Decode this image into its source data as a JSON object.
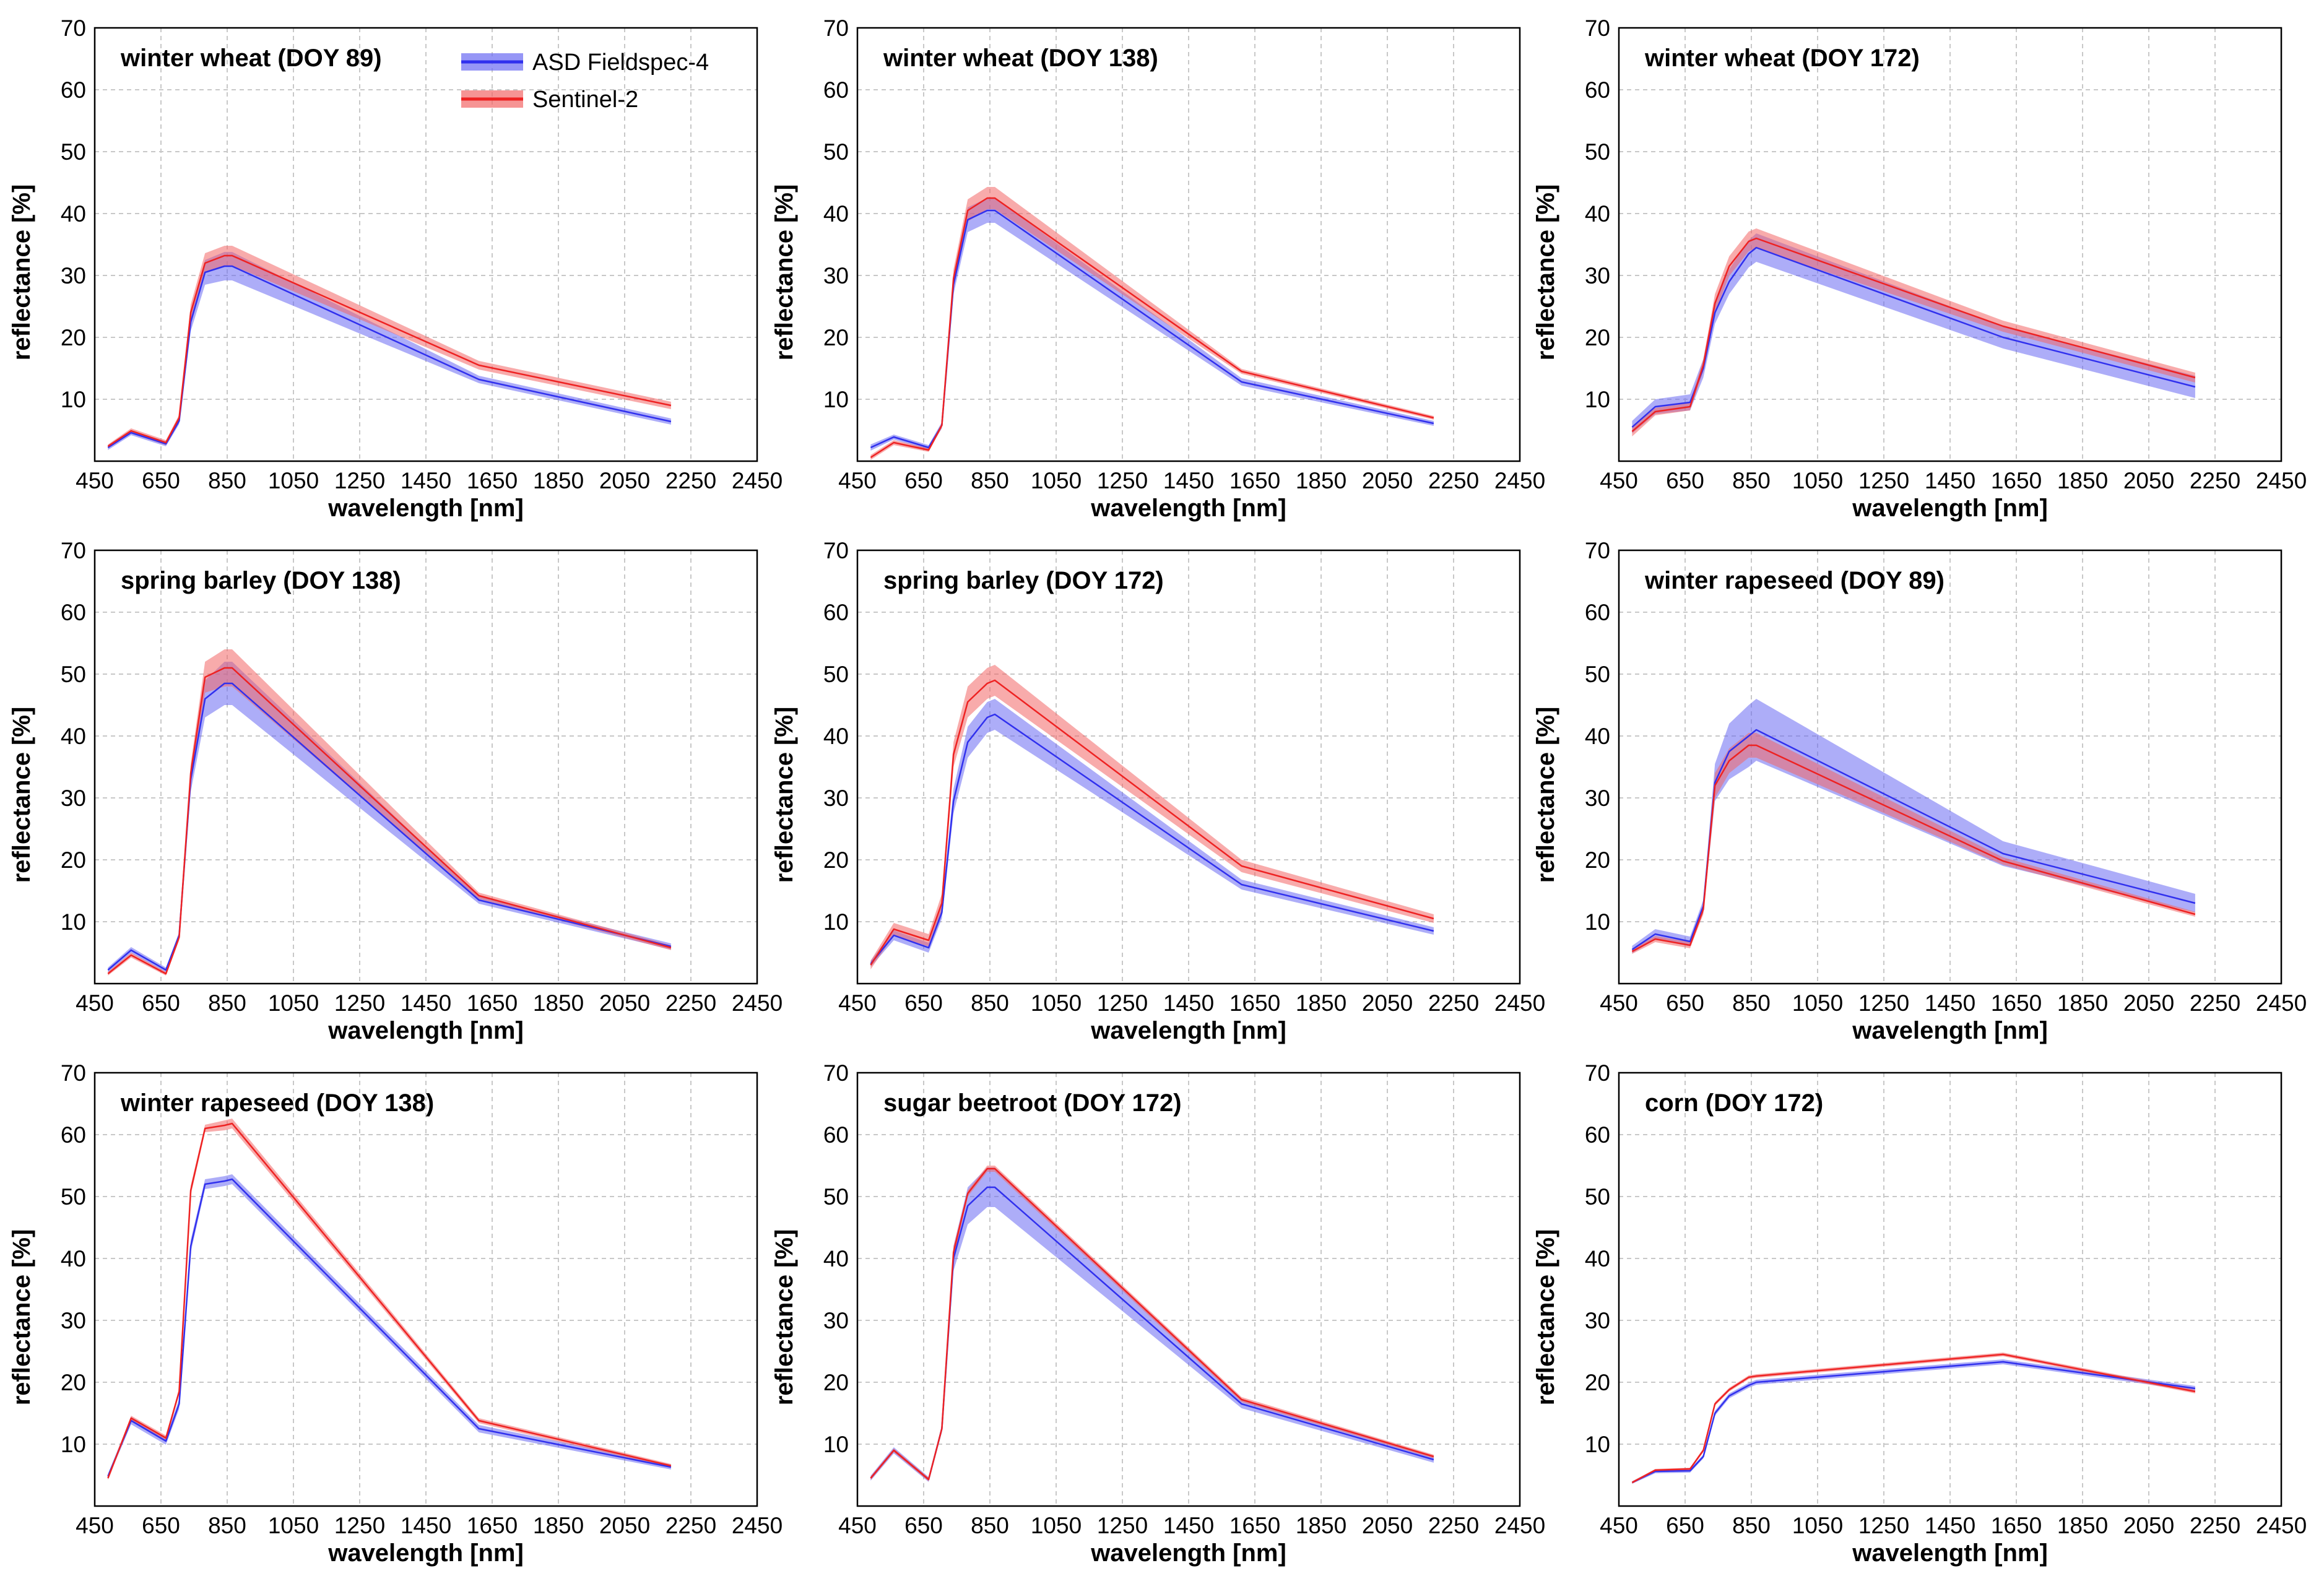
{
  "legend": [
    {
      "name": "ASD Fieldspec-4",
      "color": "#3030ee",
      "band": "#6a6af2"
    },
    {
      "name": "Sentinel-2",
      "color": "#ee2222",
      "band": "#f26666"
    }
  ],
  "axis": {
    "xlabel": "wavelength [nm]",
    "ylabel": "reflectance [%]",
    "xlim": [
      450,
      2450
    ],
    "ylim": [
      0,
      70
    ],
    "xticks": [
      450,
      650,
      850,
      1050,
      1250,
      1450,
      1650,
      1850,
      2050,
      2250,
      2450
    ],
    "yticks": [
      10,
      20,
      30,
      40,
      50,
      60,
      70
    ]
  },
  "chart_data": [
    {
      "type": "line",
      "title": "winter wheat (DOY 89)",
      "x": [
        490,
        560,
        665,
        705,
        740,
        783,
        842,
        865,
        1610,
        2190
      ],
      "series": [
        {
          "name": "ASD Fieldspec-4",
          "values": [
            2.2,
            4.6,
            2.8,
            6.5,
            22.5,
            30.5,
            31.5,
            31.5,
            13.2,
            6.4
          ],
          "spread": [
            0.4,
            0.4,
            0.4,
            0.5,
            1.5,
            2.0,
            2.3,
            2.3,
            0.6,
            0.5
          ]
        },
        {
          "name": "Sentinel-2",
          "values": [
            2.4,
            4.9,
            3.0,
            7.0,
            24.0,
            32.0,
            33.2,
            33.2,
            15.5,
            9.0
          ],
          "spread": [
            0.3,
            0.4,
            0.4,
            0.5,
            1.3,
            1.6,
            1.6,
            1.6,
            0.7,
            0.6
          ]
        }
      ]
    },
    {
      "type": "line",
      "title": "winter wheat (DOY 138)",
      "x": [
        490,
        560,
        665,
        705,
        740,
        783,
        842,
        865,
        1610,
        2190
      ],
      "series": [
        {
          "name": "ASD Fieldspec-4",
          "values": [
            2.2,
            3.9,
            2.2,
            5.8,
            28.5,
            39.0,
            40.5,
            40.5,
            12.8,
            6.1
          ],
          "spread": [
            0.5,
            0.4,
            0.4,
            0.5,
            1.5,
            2.0,
            2.0,
            2.0,
            0.6,
            0.4
          ]
        },
        {
          "name": "Sentinel-2",
          "values": [
            0.6,
            3.0,
            1.8,
            5.8,
            29.5,
            40.5,
            42.5,
            42.5,
            14.5,
            7.0
          ],
          "spread": [
            0.4,
            0.4,
            0.3,
            0.4,
            1.5,
            1.8,
            1.8,
            1.8,
            0.4,
            0.3
          ]
        }
      ]
    },
    {
      "type": "line",
      "title": "winter wheat (DOY 172)",
      "x": [
        490,
        560,
        665,
        705,
        740,
        783,
        842,
        865,
        1610,
        2190
      ],
      "series": [
        {
          "name": "ASD Fieldspec-4",
          "values": [
            5.5,
            8.8,
            9.5,
            15.0,
            24.0,
            29.0,
            33.5,
            34.5,
            20.0,
            12.0
          ],
          "spread": [
            1.0,
            1.2,
            1.3,
            1.5,
            1.8,
            2.0,
            2.2,
            2.3,
            1.8,
            1.8
          ]
        },
        {
          "name": "Sentinel-2",
          "values": [
            4.8,
            8.0,
            8.8,
            15.5,
            25.5,
            31.5,
            35.5,
            36.0,
            21.8,
            13.5
          ],
          "spread": [
            0.8,
            0.6,
            0.6,
            1.0,
            1.5,
            1.6,
            1.6,
            1.6,
            0.9,
            0.8
          ]
        }
      ]
    },
    {
      "type": "line",
      "title": "spring barley (DOY 138)",
      "x": [
        490,
        560,
        665,
        705,
        740,
        783,
        842,
        865,
        1610,
        2190
      ],
      "series": [
        {
          "name": "ASD Fieldspec-4",
          "values": [
            2.2,
            5.4,
            2.2,
            7.8,
            33.0,
            46.0,
            48.5,
            48.5,
            13.5,
            6.0
          ],
          "spread": [
            0.4,
            0.5,
            0.4,
            0.5,
            2.0,
            3.0,
            3.5,
            3.5,
            0.6,
            0.5
          ]
        },
        {
          "name": "Sentinel-2",
          "values": [
            1.6,
            4.6,
            1.6,
            7.5,
            34.0,
            49.5,
            51.0,
            51.0,
            14.2,
            5.8
          ],
          "spread": [
            0.3,
            0.4,
            0.3,
            0.5,
            1.5,
            2.5,
            3.0,
            3.0,
            0.5,
            0.4
          ]
        }
      ]
    },
    {
      "type": "line",
      "title": "spring barley (DOY 172)",
      "x": [
        490,
        560,
        665,
        705,
        740,
        783,
        842,
        865,
        1610,
        2190
      ],
      "series": [
        {
          "name": "ASD Fieldspec-4",
          "values": [
            3.2,
            7.8,
            5.8,
            11.5,
            29.5,
            39.0,
            43.0,
            43.5,
            16.0,
            8.5
          ],
          "spread": [
            0.5,
            0.8,
            0.8,
            1.0,
            2.0,
            2.5,
            2.5,
            2.5,
            0.8,
            0.6
          ]
        },
        {
          "name": "Sentinel-2",
          "values": [
            3.0,
            8.8,
            7.0,
            13.0,
            37.0,
            45.5,
            48.5,
            49.0,
            19.0,
            10.5
          ],
          "spread": [
            0.7,
            1.0,
            1.0,
            1.5,
            2.0,
            2.5,
            2.5,
            2.5,
            1.0,
            0.7
          ]
        }
      ]
    },
    {
      "type": "line",
      "title": "winter rapeseed (DOY 89)",
      "x": [
        490,
        560,
        665,
        705,
        740,
        783,
        842,
        865,
        1610,
        2190
      ],
      "series": [
        {
          "name": "ASD Fieldspec-4",
          "values": [
            5.5,
            8.0,
            6.8,
            12.5,
            32.5,
            37.5,
            40.0,
            41.0,
            21.0,
            13.0
          ],
          "spread": [
            0.6,
            0.8,
            0.8,
            1.0,
            3.0,
            4.5,
            5.0,
            5.0,
            2.0,
            1.5
          ]
        },
        {
          "name": "Sentinel-2",
          "values": [
            5.2,
            7.2,
            6.2,
            12.0,
            32.0,
            36.0,
            38.5,
            38.5,
            19.8,
            11.2
          ],
          "spread": [
            0.4,
            0.5,
            0.5,
            0.8,
            2.0,
            2.0,
            2.0,
            2.0,
            0.6,
            0.4
          ]
        }
      ]
    },
    {
      "type": "line",
      "title": "winter rapeseed (DOY 138)",
      "x": [
        490,
        560,
        665,
        705,
        740,
        783,
        842,
        865,
        1610,
        2190
      ],
      "series": [
        {
          "name": "ASD Fieldspec-4",
          "values": [
            4.8,
            13.8,
            10.5,
            16.5,
            42.0,
            52.0,
            52.5,
            52.8,
            12.5,
            6.3
          ],
          "spread": [
            0.4,
            0.6,
            0.6,
            0.8,
            1.0,
            0.8,
            0.8,
            0.8,
            0.6,
            0.4
          ]
        },
        {
          "name": "Sentinel-2",
          "values": [
            4.5,
            14.2,
            11.0,
            18.5,
            51.0,
            61.0,
            61.5,
            61.8,
            13.8,
            6.5
          ],
          "spread": [
            0.3,
            0.4,
            0.4,
            0.5,
            0.8,
            0.6,
            0.8,
            0.8,
            0.4,
            0.3
          ]
        }
      ]
    },
    {
      "type": "line",
      "title": "sugar beetroot (DOY 172)",
      "x": [
        490,
        560,
        665,
        705,
        740,
        783,
        842,
        865,
        1610,
        2190
      ],
      "series": [
        {
          "name": "ASD Fieldspec-4",
          "values": [
            4.5,
            9.0,
            4.3,
            12.5,
            40.0,
            48.5,
            51.5,
            51.5,
            16.5,
            7.5
          ],
          "spread": [
            0.4,
            0.5,
            0.4,
            0.6,
            2.0,
            3.0,
            3.2,
            3.2,
            0.7,
            0.5
          ]
        },
        {
          "name": "Sentinel-2",
          "values": [
            4.5,
            9.0,
            4.3,
            12.5,
            41.0,
            50.5,
            54.5,
            54.5,
            17.2,
            8.0
          ],
          "spread": [
            0.3,
            0.3,
            0.3,
            0.4,
            1.0,
            0.5,
            0.5,
            0.5,
            0.4,
            0.3
          ]
        }
      ]
    },
    {
      "type": "line",
      "title": "corn (DOY 172)",
      "x": [
        490,
        560,
        665,
        705,
        740,
        783,
        842,
        865,
        1610,
        2190
      ],
      "series": [
        {
          "name": "ASD Fieldspec-4",
          "values": [
            3.8,
            5.6,
            5.7,
            8.0,
            15.0,
            17.8,
            19.5,
            20.0,
            23.3,
            19.0
          ],
          "spread": [
            0.2,
            0.3,
            0.3,
            0.3,
            0.4,
            0.4,
            0.4,
            0.4,
            0.4,
            0.4
          ]
        },
        {
          "name": "Sentinel-2",
          "values": [
            3.8,
            5.8,
            6.0,
            9.0,
            16.5,
            18.8,
            20.8,
            21.0,
            24.5,
            18.5
          ],
          "spread": [
            0.2,
            0.2,
            0.2,
            0.3,
            0.3,
            0.3,
            0.3,
            0.3,
            0.3,
            0.3
          ]
        }
      ]
    }
  ]
}
